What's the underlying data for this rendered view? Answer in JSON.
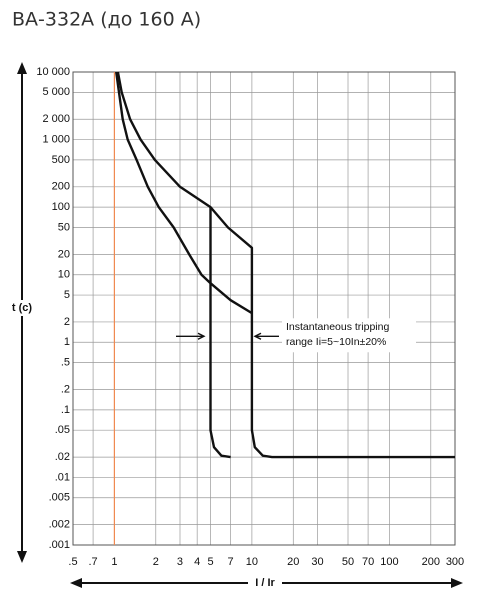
{
  "chart_data": {
    "type": "line",
    "title": "ВА-332А (до 160 А)",
    "y_label": "t (c)",
    "x_label": "I / Ir",
    "annotation": [
      "Instantaneous tripping",
      "range Ii=5~10In±20%"
    ],
    "log_x": true,
    "log_y": true,
    "grid": true,
    "xlim": [
      0.5,
      300
    ],
    "ylim": [
      0.001,
      10000
    ],
    "xticks": [
      {
        "value": 0.5,
        "label": ".5"
      },
      {
        "value": 0.7,
        "label": ".7"
      },
      1,
      2,
      3,
      4,
      5,
      7,
      10,
      20,
      30,
      50,
      70,
      100,
      200,
      300
    ],
    "yticks": [
      {
        "value": 10000,
        "label": "10 000"
      },
      {
        "value": 5000,
        "label": "5 000"
      },
      {
        "value": 2000,
        "label": "2 000"
      },
      {
        "value": 1000,
        "label": "1 000"
      },
      500,
      200,
      100,
      50,
      20,
      10,
      5,
      2,
      1,
      {
        "value": 0.5,
        "label": ".5"
      },
      {
        "value": 0.2,
        "label": ".2"
      },
      {
        "value": 0.1,
        "label": ".1"
      },
      {
        "value": 0.05,
        "label": ".05"
      },
      {
        "value": 0.02,
        "label": ".02"
      },
      {
        "value": 0.01,
        "label": ".01"
      },
      {
        "value": 0.005,
        "label": ".005"
      },
      {
        "value": 0.002,
        "label": ".002"
      },
      {
        "value": 0.001,
        "label": ".001"
      }
    ],
    "ref_line": {
      "x": 1,
      "color": "#f08a50"
    },
    "series": [
      {
        "color": "#111111",
        "x": [
          1.06,
          1.13,
          1.3,
          1.55,
          1.97,
          3.0,
          5,
          6.7,
          10,
          10,
          10.5,
          12,
          14,
          300
        ],
        "y": [
          10000,
          5000,
          2000,
          1000,
          500,
          200,
          100,
          50,
          25,
          0.05,
          0.028,
          0.021,
          0.02,
          0.02
        ]
      },
      {
        "color": "#111111",
        "x": [
          1.03,
          1.08,
          1.15,
          1.25,
          1.45,
          1.75,
          2.1,
          2.7,
          3.5,
          4.3,
          5,
          7,
          10
        ],
        "y": [
          10000,
          5000,
          2000,
          1000,
          500,
          200,
          100,
          50,
          20,
          10,
          7.5,
          4.2,
          2.7
        ]
      },
      {
        "color": "#111111",
        "x": [
          5,
          5,
          5.3,
          6,
          7
        ],
        "y": [
          100,
          0.05,
          0.028,
          0.021,
          0.02
        ]
      }
    ]
  }
}
